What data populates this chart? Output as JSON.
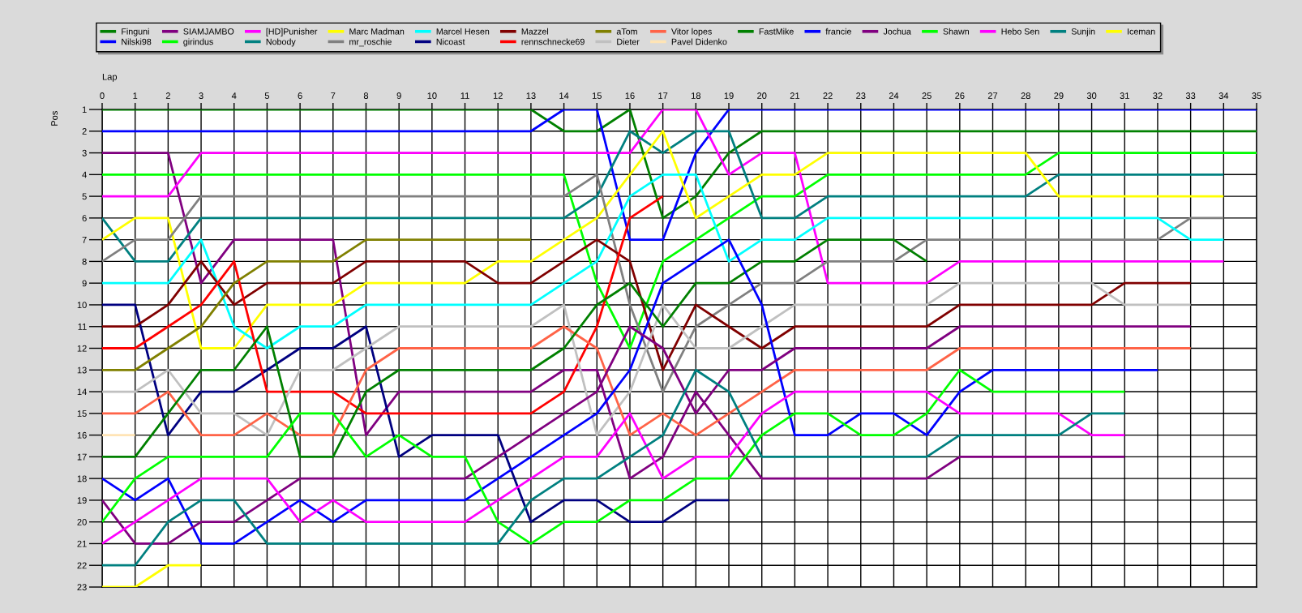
{
  "chart_data": {
    "type": "line",
    "xlabel": "Lap",
    "ylabel": "Pos",
    "x": [
      0,
      1,
      2,
      3,
      4,
      5,
      6,
      7,
      8,
      9,
      10,
      11,
      12,
      13,
      14,
      15,
      16,
      17,
      18,
      19,
      20,
      21,
      22,
      23,
      24,
      25,
      26,
      27,
      28,
      29,
      30,
      31,
      32,
      33,
      34,
      35
    ],
    "xlim": [
      0,
      35
    ],
    "xticks": [
      0,
      1,
      2,
      3,
      4,
      5,
      6,
      7,
      8,
      9,
      10,
      11,
      12,
      13,
      14,
      15,
      16,
      17,
      18,
      19,
      20,
      21,
      22,
      23,
      24,
      25,
      26,
      27,
      28,
      29,
      30,
      31,
      32,
      33,
      34,
      35
    ],
    "ylim": [
      23,
      1
    ],
    "yticks": [
      1,
      2,
      3,
      4,
      5,
      6,
      7,
      8,
      9,
      10,
      11,
      12,
      13,
      14,
      15,
      16,
      17,
      18,
      19,
      20,
      21,
      22,
      23
    ],
    "grid": true,
    "legend": "top",
    "line_style": "solid",
    "series": [
      {
        "name": "Finguni",
        "color": "#008000",
        "values": [
          1,
          1,
          1,
          1,
          1,
          1,
          1,
          1,
          1,
          1,
          1,
          1,
          1,
          1,
          2,
          2,
          1,
          6,
          5,
          3,
          2,
          2,
          2,
          2,
          2,
          2,
          2,
          2,
          2,
          2,
          2,
          2,
          2,
          2,
          2,
          2
        ]
      },
      {
        "name": "Nilski98",
        "color": "#0000ff",
        "values": [
          2,
          2,
          2,
          2,
          2,
          2,
          2,
          2,
          2,
          2,
          2,
          2,
          2,
          2,
          1,
          1,
          7,
          7,
          3,
          1,
          1,
          1,
          1,
          1,
          1,
          1,
          1,
          1,
          1,
          1,
          1,
          1,
          1,
          1,
          1,
          1
        ]
      },
      {
        "name": "SIAMJAMBO",
        "color": "#800080",
        "values": [
          3,
          3,
          3,
          9,
          7,
          7,
          7,
          7,
          16,
          14,
          14,
          14,
          14,
          14,
          13,
          13,
          18,
          17,
          14,
          16,
          18,
          18,
          18,
          18,
          18,
          18,
          17,
          17,
          17,
          17,
          17,
          17,
          null,
          null,
          null,
          null
        ]
      },
      {
        "name": "girindus",
        "color": "#00ff00",
        "values": [
          4,
          4,
          4,
          4,
          4,
          4,
          4,
          4,
          4,
          4,
          4,
          4,
          4,
          4,
          4,
          9,
          12,
          8,
          7,
          6,
          5,
          5,
          4,
          4,
          4,
          4,
          4,
          4,
          4,
          3,
          3,
          3,
          3,
          3,
          3,
          3
        ]
      },
      {
        "name": "[HD]Punisher",
        "color": "#ff00ff",
        "values": [
          5,
          5,
          5,
          3,
          3,
          3,
          3,
          3,
          3,
          3,
          3,
          3,
          3,
          3,
          3,
          3,
          3,
          1,
          1,
          4,
          3,
          3,
          9,
          9,
          9,
          9,
          8,
          8,
          8,
          8,
          8,
          8,
          8,
          8,
          8,
          null
        ]
      },
      {
        "name": "Nobody",
        "color": "#008080",
        "values": [
          6,
          8,
          8,
          6,
          6,
          6,
          6,
          6,
          6,
          6,
          6,
          6,
          6,
          6,
          6,
          5,
          2,
          3,
          2,
          2,
          6,
          6,
          5,
          5,
          5,
          5,
          5,
          5,
          5,
          4,
          4,
          4,
          4,
          4,
          4,
          null
        ]
      },
      {
        "name": "Marc Madman",
        "color": "#ffff00",
        "values": [
          7,
          6,
          6,
          12,
          12,
          10,
          10,
          10,
          9,
          9,
          9,
          9,
          8,
          8,
          7,
          6,
          4,
          2,
          6,
          5,
          4,
          4,
          3,
          3,
          3,
          3,
          3,
          3,
          3,
          5,
          5,
          5,
          5,
          5,
          5,
          null
        ]
      },
      {
        "name": "mr_roschie",
        "color": "#808080",
        "values": [
          8,
          7,
          7,
          5,
          5,
          5,
          5,
          5,
          5,
          5,
          5,
          5,
          5,
          5,
          5,
          4,
          10,
          14,
          11,
          10,
          9,
          9,
          8,
          8,
          8,
          7,
          7,
          7,
          7,
          7,
          7,
          7,
          7,
          6,
          6,
          null
        ]
      },
      {
        "name": "Marcel Hesen",
        "color": "#00ffff",
        "values": [
          9,
          9,
          9,
          7,
          11,
          12,
          11,
          11,
          10,
          10,
          10,
          10,
          10,
          10,
          9,
          8,
          5,
          4,
          4,
          8,
          7,
          7,
          6,
          6,
          6,
          6,
          6,
          6,
          6,
          6,
          6,
          6,
          6,
          7,
          7,
          null
        ]
      },
      {
        "name": "Nicoast",
        "color": "#000080",
        "values": [
          10,
          10,
          16,
          14,
          14,
          13,
          12,
          12,
          11,
          17,
          16,
          16,
          16,
          20,
          19,
          19,
          20,
          20,
          19,
          19,
          null,
          null,
          null,
          null,
          null,
          null,
          null,
          null,
          null,
          null,
          null,
          null,
          null,
          null,
          null,
          null
        ]
      },
      {
        "name": "Mazzel",
        "color": "#800000",
        "values": [
          11,
          11,
          10,
          8,
          10,
          9,
          9,
          9,
          8,
          8,
          8,
          8,
          9,
          9,
          8,
          7,
          8,
          13,
          10,
          11,
          12,
          11,
          11,
          11,
          11,
          11,
          10,
          10,
          10,
          10,
          10,
          9,
          9,
          9,
          null,
          null
        ]
      },
      {
        "name": "rennschnecke69",
        "color": "#ff0000",
        "values": [
          12,
          12,
          11,
          10,
          8,
          14,
          14,
          14,
          15,
          15,
          15,
          15,
          15,
          15,
          14,
          11,
          6,
          5,
          null,
          null,
          null,
          null,
          null,
          null,
          null,
          null,
          null,
          null,
          null,
          null,
          null,
          null,
          null,
          null,
          null,
          null
        ]
      },
      {
        "name": "aTom",
        "color": "#808000",
        "values": [
          13,
          13,
          12,
          11,
          9,
          8,
          8,
          8,
          7,
          7,
          7,
          7,
          7,
          7,
          null,
          null,
          null,
          null,
          null,
          null,
          null,
          null,
          null,
          null,
          null,
          null,
          null,
          null,
          null,
          null,
          null,
          null,
          null,
          null,
          null,
          null
        ]
      },
      {
        "name": "Dieter",
        "color": "#c0c0c0",
        "values": [
          14,
          14,
          13,
          15,
          15,
          16,
          13,
          13,
          12,
          11,
          11,
          11,
          11,
          11,
          10,
          16,
          14,
          10,
          12,
          12,
          11,
          10,
          10,
          10,
          10,
          10,
          9,
          9,
          9,
          9,
          9,
          10,
          10,
          10,
          null,
          null
        ]
      },
      {
        "name": "Vitor lopes",
        "color": "#ff6347",
        "values": [
          15,
          15,
          14,
          16,
          16,
          15,
          16,
          16,
          13,
          12,
          12,
          12,
          12,
          12,
          11,
          12,
          16,
          15,
          16,
          15,
          14,
          13,
          13,
          13,
          13,
          13,
          12,
          12,
          12,
          12,
          12,
          12,
          12,
          12,
          null,
          null
        ]
      },
      {
        "name": "Pavel Didenko",
        "color": "#ffe4b5",
        "values": [
          16,
          16,
          null,
          null,
          null,
          null,
          null,
          null,
          null,
          null,
          null,
          null,
          null,
          null,
          null,
          null,
          null,
          null,
          null,
          null,
          null,
          null,
          null,
          null,
          null,
          null,
          null,
          null,
          null,
          null,
          null,
          null,
          null,
          null,
          null,
          null
        ]
      },
      {
        "name": "FastMike",
        "color": "#008000",
        "values": [
          17,
          17,
          15,
          13,
          13,
          11,
          17,
          17,
          14,
          13,
          13,
          13,
          13,
          13,
          12,
          10,
          9,
          11,
          9,
          9,
          8,
          8,
          7,
          7,
          7,
          8,
          null,
          null,
          null,
          null,
          null,
          null,
          null,
          null,
          null,
          null
        ]
      },
      {
        "name": "francie",
        "color": "#0000ff",
        "values": [
          18,
          19,
          18,
          21,
          21,
          20,
          19,
          20,
          19,
          19,
          19,
          19,
          18,
          17,
          16,
          15,
          13,
          9,
          8,
          7,
          10,
          16,
          16,
          15,
          15,
          16,
          14,
          13,
          13,
          13,
          13,
          13,
          13,
          null,
          null,
          null
        ]
      },
      {
        "name": "Jochua",
        "color": "#800080",
        "values": [
          19,
          21,
          21,
          20,
          20,
          19,
          18,
          18,
          18,
          18,
          18,
          18,
          17,
          16,
          15,
          14,
          11,
          12,
          15,
          13,
          13,
          12,
          12,
          12,
          12,
          12,
          11,
          11,
          11,
          11,
          11,
          11,
          11,
          11,
          null,
          null
        ]
      },
      {
        "name": "Shawn",
        "color": "#00ff00",
        "values": [
          20,
          18,
          17,
          17,
          17,
          17,
          15,
          15,
          17,
          16,
          17,
          17,
          20,
          21,
          20,
          20,
          19,
          19,
          18,
          18,
          16,
          15,
          15,
          16,
          16,
          15,
          13,
          14,
          14,
          14,
          14,
          14,
          null,
          null,
          null,
          null
        ]
      },
      {
        "name": "Hebo Sen",
        "color": "#ff00ff",
        "values": [
          21,
          20,
          19,
          18,
          18,
          18,
          20,
          19,
          20,
          20,
          20,
          20,
          19,
          18,
          17,
          17,
          15,
          18,
          17,
          17,
          15,
          14,
          14,
          14,
          14,
          14,
          15,
          15,
          15,
          15,
          16,
          16,
          null,
          null,
          null,
          null
        ]
      },
      {
        "name": "Sunjin",
        "color": "#008080",
        "values": [
          22,
          22,
          20,
          19,
          19,
          21,
          21,
          21,
          21,
          21,
          21,
          21,
          21,
          19,
          18,
          18,
          17,
          16,
          13,
          14,
          17,
          17,
          17,
          17,
          17,
          17,
          16,
          16,
          16,
          16,
          15,
          15,
          null,
          null,
          null,
          null
        ]
      },
      {
        "name": "Iceman",
        "color": "#ffff00",
        "values": [
          23,
          23,
          22,
          22,
          null,
          null,
          null,
          null,
          null,
          null,
          null,
          null,
          null,
          null,
          null,
          null,
          null,
          null,
          null,
          null,
          null,
          null,
          null,
          null,
          null,
          null,
          null,
          null,
          null,
          null,
          null,
          null,
          null,
          null,
          null,
          null
        ]
      }
    ]
  }
}
